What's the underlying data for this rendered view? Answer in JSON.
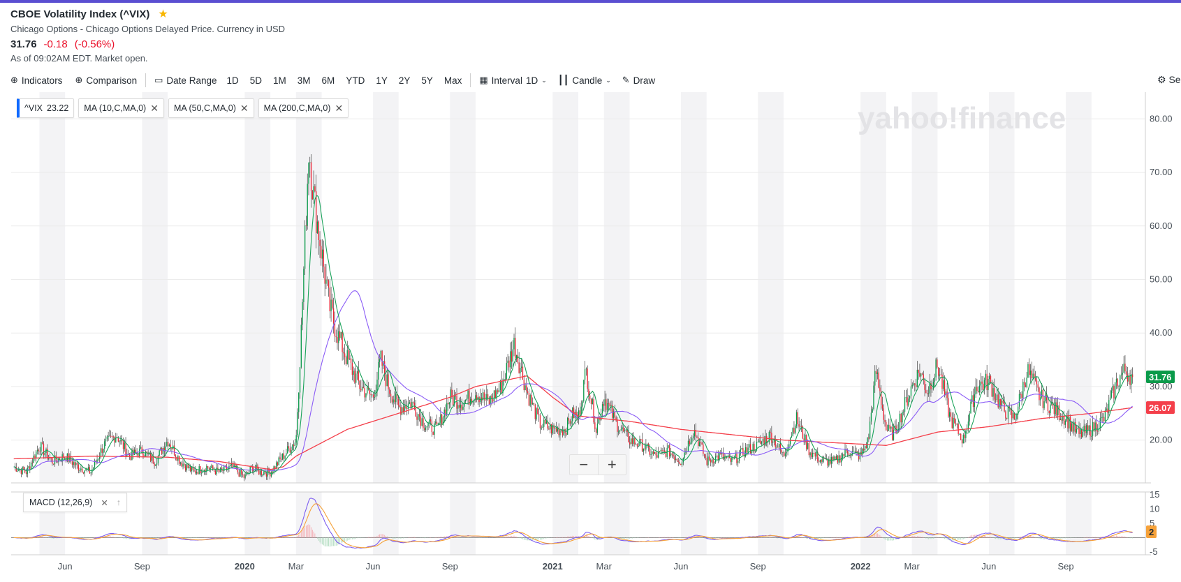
{
  "header": {
    "title": "CBOE Volatility Index (^VIX)",
    "subtitle": "Chicago Options - Chicago Options Delayed Price. Currency in USD",
    "price": "31.76",
    "change": "-0.18",
    "change_pct": "(-0.56%)",
    "as_of": "As of 09:02AM EDT. Market open."
  },
  "toolbar": {
    "indicators": "Indicators",
    "comparison": "Comparison",
    "date_range": "Date Range",
    "ranges": [
      "1D",
      "5D",
      "1M",
      "3M",
      "6M",
      "YTD",
      "1Y",
      "2Y",
      "5Y",
      "Max"
    ],
    "interval_label": "Interval",
    "interval_value": "1D",
    "chart_type": "Candle",
    "draw": "Draw",
    "settings": "Se"
  },
  "chips": {
    "vix_label": "^VIX",
    "vix_value": "23.22",
    "ma10": "MA (10,C,MA,0)",
    "ma50": "MA (50,C,MA,0)",
    "ma200": "MA (200,C,MA,0)",
    "macd": "MACD (12,26,9)"
  },
  "watermark": "yahoo!finance",
  "tags": {
    "price": "31.76",
    "ma200": "26.07",
    "macd": "2"
  },
  "colors": {
    "up": "#0a9a4a",
    "down": "#eb2435",
    "ma10": "#1aa35a",
    "ma50": "#8b5cf6",
    "ma200": "#f43f4a",
    "macd": "#7c5cf0",
    "signal": "#f6a23a",
    "accent": "#0f69ff"
  },
  "chart_data": {
    "type": "candlestick",
    "ylim": [
      12,
      85
    ],
    "yticks": [
      20,
      30,
      40,
      50,
      60,
      70,
      80
    ],
    "ytick_labels": [
      "20.00",
      "30.00",
      "40.00",
      "50.00",
      "60.00",
      "70.00",
      "80.00"
    ],
    "x_labels": [
      "Jun",
      "Sep",
      "2020",
      "Mar",
      "Jun",
      "Sep",
      "2021",
      "Mar",
      "Jun",
      "Sep",
      "2022",
      "Mar",
      "Jun",
      "Sep"
    ],
    "x_label_months": [
      1,
      4,
      8,
      10,
      13,
      16,
      20,
      22,
      25,
      28,
      32,
      34,
      37,
      40
    ],
    "x_start_month_offset": -1.1,
    "x_end_month_offset": 43.1,
    "shaded_month_ranges": [
      [
        0,
        1
      ],
      [
        4,
        5
      ],
      [
        8,
        9
      ],
      [
        10,
        11
      ],
      [
        13,
        14
      ],
      [
        16,
        17
      ],
      [
        20,
        21
      ],
      [
        22,
        23
      ],
      [
        25,
        26
      ],
      [
        28,
        29
      ],
      [
        32,
        33
      ],
      [
        34,
        35
      ],
      [
        37,
        38
      ],
      [
        40,
        41
      ]
    ],
    "close_anchors": {
      "month": [
        -1,
        -0.5,
        0,
        0.5,
        1,
        1.5,
        2,
        2.5,
        3,
        3.5,
        4,
        4.5,
        5,
        5.5,
        6,
        6.5,
        7,
        7.5,
        8,
        8.3,
        8.6,
        9,
        9.5,
        10,
        10.2,
        10.5,
        10.7,
        11,
        11.3,
        11.6,
        12,
        12.5,
        13,
        13.3,
        13.6,
        14,
        14.5,
        15,
        15.5,
        16,
        16.5,
        17,
        17.5,
        18,
        18.5,
        19,
        19.5,
        20,
        20.5,
        20.8,
        21,
        21.3,
        21.7,
        22,
        22.5,
        23,
        23.5,
        24,
        24.5,
        25,
        25.5,
        26,
        26.5,
        27,
        27.5,
        28,
        28.5,
        29,
        29.5,
        30,
        30.5,
        31,
        31.5,
        32,
        32.3,
        32.6,
        33,
        33.3,
        33.6,
        34,
        34.3,
        34.6,
        35,
        35.5,
        36,
        36.5,
        37,
        37.5,
        38,
        38.5,
        39,
        39.5,
        40,
        40.5,
        41,
        41.5,
        42,
        42.3,
        42.6
      ],
      "close": [
        15,
        14,
        19,
        16,
        17,
        15,
        14,
        19,
        21,
        17,
        18,
        16,
        20,
        16,
        14,
        15,
        14,
        15,
        13,
        15,
        14,
        14,
        17,
        20,
        40,
        75,
        65,
        55,
        45,
        40,
        35,
        30,
        28,
        35,
        30,
        26,
        27,
        23,
        22,
        28,
        27,
        29,
        27,
        30,
        38,
        29,
        23,
        22,
        22,
        25,
        24,
        33,
        22,
        28,
        23,
        20,
        19,
        17,
        18,
        16,
        22,
        16,
        17,
        16,
        18,
        19,
        21,
        17,
        24,
        18,
        16,
        16,
        18,
        17,
        20,
        33,
        22,
        21,
        25,
        30,
        33,
        29,
        34,
        24,
        20,
        30,
        31,
        26,
        24,
        33,
        28,
        26,
        24,
        21,
        22,
        24,
        31,
        33,
        31.76
      ]
    },
    "ma200_anchors": {
      "month": [
        -1,
        2,
        5,
        7,
        9,
        9.5,
        10,
        11,
        12,
        13,
        14,
        15,
        16,
        17,
        18,
        19,
        20,
        21,
        22,
        23,
        25,
        27,
        29,
        31,
        33,
        35,
        37,
        39,
        41,
        42.6
      ],
      "value": [
        16.5,
        17,
        16.8,
        16,
        14.5,
        15,
        17,
        19.5,
        22,
        23.5,
        25,
        26.5,
        28,
        30,
        31,
        32,
        28,
        24.5,
        24,
        23.5,
        22,
        21,
        20,
        19.5,
        19,
        21.5,
        22.5,
        24,
        25,
        26.07
      ]
    },
    "series": [
      {
        "name": "^VIX"
      },
      {
        "name": "MA (10,C,MA,0)"
      },
      {
        "name": "MA (50,C,MA,0)"
      },
      {
        "name": "MA (200,C,MA,0)"
      }
    ],
    "macd": {
      "ylim": [
        -6,
        16
      ],
      "yticks": [
        -5,
        0,
        5,
        10,
        15
      ],
      "ytick_labels": [
        "-5",
        "",
        "5",
        "10",
        "15"
      ],
      "current": 2
    }
  }
}
